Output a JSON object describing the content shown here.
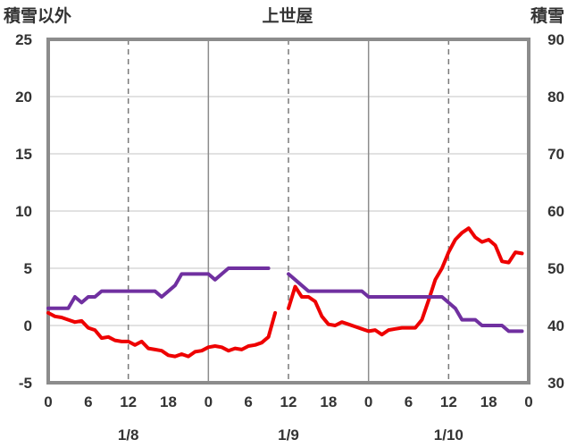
{
  "chart_data": {
    "type": "line",
    "title": "上世屋",
    "left_axis_label": "積雪以外",
    "right_axis_label": "積雪",
    "left_ylim": [
      -5,
      25
    ],
    "left_ticks": [
      25,
      20,
      15,
      10,
      5,
      0,
      -5
    ],
    "right_ylim": [
      30,
      90
    ],
    "right_ticks": [
      90,
      80,
      70,
      60,
      50,
      40,
      30
    ],
    "x_range_hours": [
      0,
      72
    ],
    "x_tick_labels": [
      "0",
      "6",
      "12",
      "18",
      "0",
      "6",
      "12",
      "18",
      "0",
      "6",
      "12",
      "18",
      "0"
    ],
    "date_labels": [
      {
        "text": "1/8",
        "hour": 12
      },
      {
        "text": "1/9",
        "hour": 36
      },
      {
        "text": "1/10",
        "hour": 60
      }
    ],
    "grid": {
      "dashed_every_hours": 12,
      "solid_every_hours": 24,
      "horizontal": [
        0,
        5,
        10,
        15,
        20
      ]
    },
    "series": [
      {
        "axis": "left",
        "color": "#ee0000",
        "segments": [
          [
            [
              0,
              1.1
            ],
            [
              1,
              0.8
            ],
            [
              2,
              0.7
            ],
            [
              3,
              0.5
            ],
            [
              4,
              0.3
            ],
            [
              5,
              0.4
            ],
            [
              6,
              -0.2
            ],
            [
              7,
              -0.4
            ],
            [
              8,
              -1.1
            ],
            [
              9,
              -1.0
            ],
            [
              10,
              -1.3
            ],
            [
              11,
              -1.4
            ],
            [
              12,
              -1.4
            ],
            [
              13,
              -1.7
            ],
            [
              14,
              -1.4
            ],
            [
              15,
              -2.0
            ],
            [
              16,
              -2.1
            ],
            [
              17,
              -2.2
            ],
            [
              18,
              -2.6
            ],
            [
              19,
              -2.7
            ],
            [
              20,
              -2.5
            ],
            [
              21,
              -2.7
            ],
            [
              22,
              -2.3
            ],
            [
              23,
              -2.2
            ],
            [
              24,
              -1.9
            ],
            [
              25,
              -1.8
            ],
            [
              26,
              -1.9
            ],
            [
              27,
              -2.2
            ],
            [
              28,
              -2.0
            ],
            [
              29,
              -2.1
            ],
            [
              30,
              -1.8
            ],
            [
              31,
              -1.7
            ],
            [
              32,
              -1.5
            ],
            [
              33,
              -1.0
            ],
            [
              34,
              1.1
            ]
          ],
          [
            [
              36,
              1.5
            ],
            [
              37,
              3.4
            ],
            [
              38,
              2.5
            ],
            [
              39,
              2.5
            ],
            [
              40,
              2.1
            ],
            [
              41,
              0.8
            ],
            [
              42,
              0.1
            ],
            [
              43,
              0.0
            ],
            [
              44,
              0.3
            ],
            [
              45,
              0.1
            ],
            [
              46,
              -0.1
            ],
            [
              47,
              -0.3
            ],
            [
              48,
              -0.5
            ],
            [
              49,
              -0.4
            ],
            [
              50,
              -0.8
            ],
            [
              51,
              -0.4
            ],
            [
              52,
              -0.3
            ],
            [
              53,
              -0.2
            ],
            [
              54,
              -0.2
            ],
            [
              55,
              -0.2
            ],
            [
              56,
              0.5
            ],
            [
              57,
              2.2
            ],
            [
              58,
              4.0
            ],
            [
              59,
              5.0
            ],
            [
              60,
              6.4
            ],
            [
              61,
              7.5
            ],
            [
              62,
              8.1
            ],
            [
              63,
              8.5
            ],
            [
              64,
              7.7
            ],
            [
              65,
              7.3
            ],
            [
              66,
              7.5
            ],
            [
              67,
              7.0
            ],
            [
              68,
              5.6
            ],
            [
              69,
              5.5
            ],
            [
              70,
              6.4
            ],
            [
              71,
              6.3
            ]
          ]
        ]
      },
      {
        "axis": "right",
        "color": "#7030a0",
        "segments": [
          [
            [
              0,
              43
            ],
            [
              1,
              43
            ],
            [
              2,
              43
            ],
            [
              3,
              43
            ],
            [
              4,
              45
            ],
            [
              5,
              44
            ],
            [
              6,
              45
            ],
            [
              7,
              45
            ],
            [
              8,
              46
            ],
            [
              9,
              46
            ],
            [
              10,
              46
            ],
            [
              11,
              46
            ],
            [
              12,
              46
            ],
            [
              13,
              46
            ],
            [
              14,
              46
            ],
            [
              15,
              46
            ],
            [
              16,
              46
            ],
            [
              17,
              45
            ],
            [
              18,
              46
            ],
            [
              19,
              47
            ],
            [
              20,
              49
            ],
            [
              21,
              49
            ],
            [
              22,
              49
            ],
            [
              23,
              49
            ],
            [
              24,
              49
            ],
            [
              25,
              48
            ],
            [
              26,
              49
            ],
            [
              27,
              50
            ],
            [
              28,
              50
            ],
            [
              29,
              50
            ],
            [
              30,
              50
            ],
            [
              31,
              50
            ],
            [
              32,
              50
            ],
            [
              33,
              50
            ]
          ],
          [
            [
              36,
              49
            ],
            [
              37,
              48
            ],
            [
              38,
              47
            ],
            [
              39,
              46
            ],
            [
              40,
              46
            ],
            [
              41,
              46
            ],
            [
              42,
              46
            ],
            [
              43,
              46
            ],
            [
              44,
              46
            ],
            [
              45,
              46
            ],
            [
              46,
              46
            ],
            [
              47,
              46
            ],
            [
              48,
              45
            ],
            [
              49,
              45
            ],
            [
              50,
              45
            ],
            [
              51,
              45
            ],
            [
              52,
              45
            ],
            [
              53,
              45
            ],
            [
              54,
              45
            ],
            [
              55,
              45
            ],
            [
              56,
              45
            ],
            [
              57,
              45
            ],
            [
              58,
              45
            ],
            [
              59,
              45
            ],
            [
              60,
              44
            ],
            [
              61,
              43
            ],
            [
              62,
              41
            ],
            [
              63,
              41
            ],
            [
              64,
              41
            ],
            [
              65,
              40
            ],
            [
              66,
              40
            ],
            [
              67,
              40
            ],
            [
              68,
              40
            ],
            [
              69,
              39
            ],
            [
              70,
              39
            ],
            [
              71,
              39
            ]
          ]
        ]
      }
    ]
  }
}
